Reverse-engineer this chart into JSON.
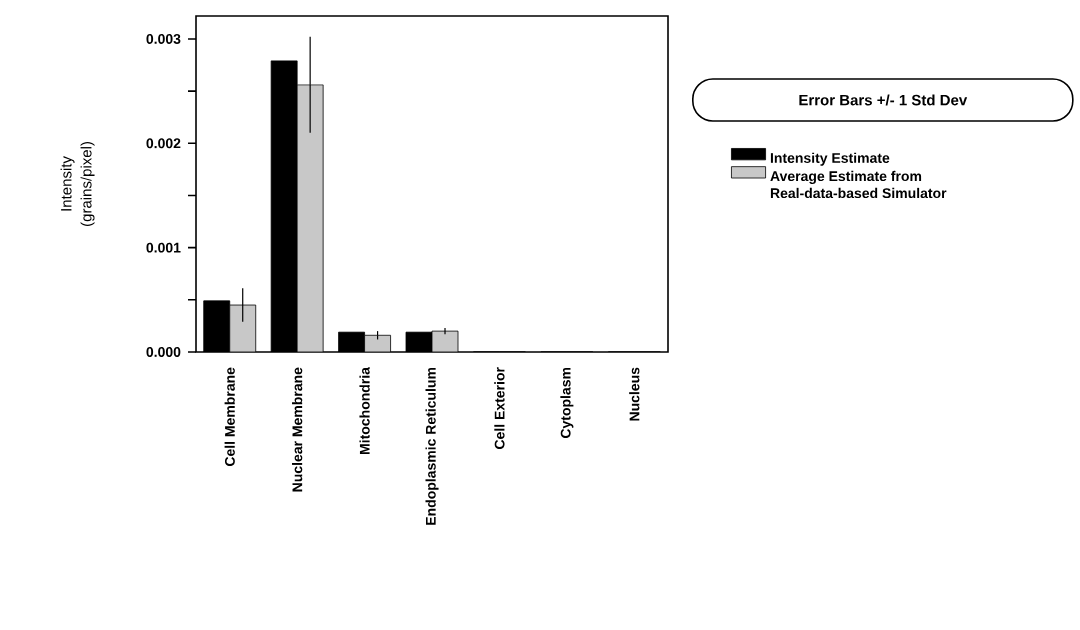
{
  "chart_data": {
    "type": "bar",
    "ylabel": "Intensity (grains/pixel)",
    "categories": [
      "Cell Membrane",
      "Nuclear Membrane",
      "Mitochondria",
      "Endoplasmic Reticulum",
      "Cell Exterior",
      "Cytoplasm",
      "Nucleus"
    ],
    "series": [
      {
        "name": "Intensity Estimate",
        "color": "#000000",
        "values": [
          0.00049,
          0.00279,
          0.00019,
          0.00019,
          0,
          0,
          0
        ]
      },
      {
        "name": "Average Estimate from Real-data-based Simulator",
        "color": "#c8c8c8",
        "values": [
          0.00045,
          0.00256,
          0.00016,
          0.0002,
          0,
          0,
          0
        ],
        "errors": [
          0.00016,
          0.00046,
          4e-05,
          3e-05,
          null,
          null,
          null
        ]
      }
    ],
    "ylim": [
      0,
      0.00322
    ],
    "yticks": [
      {
        "value": 0,
        "label": "0.000"
      },
      {
        "value": 0.0005,
        "label": null
      },
      {
        "value": 0.001,
        "label": "0.001"
      },
      {
        "value": 0.0015,
        "label": null
      },
      {
        "value": 0.002,
        "label": "0.002"
      },
      {
        "value": 0.0025,
        "label": null
      },
      {
        "value": 0.003,
        "label": "0.003"
      }
    ],
    "legend": "right",
    "grid": false,
    "annotations": [
      "Error Bars +/- 1 Std Dev"
    ]
  }
}
